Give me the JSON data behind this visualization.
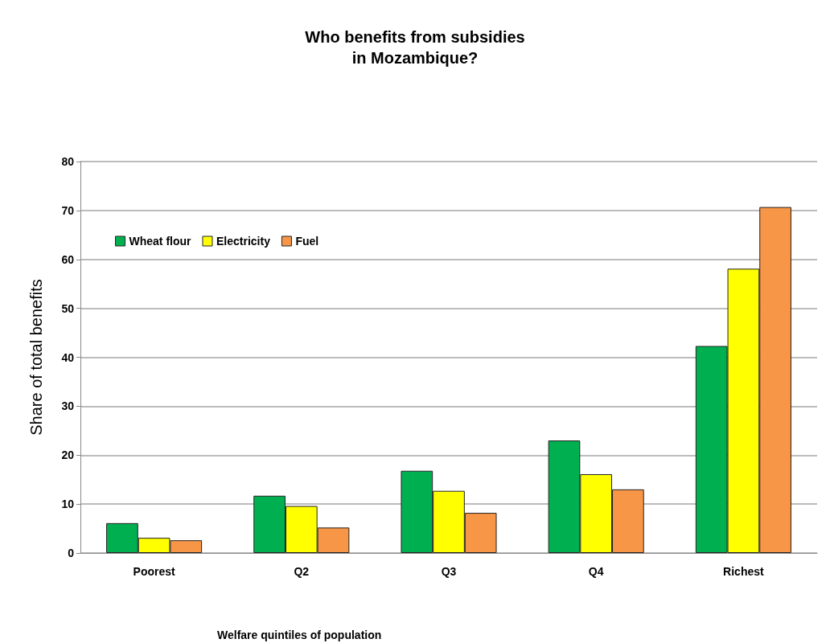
{
  "chart_data": {
    "type": "bar",
    "title": "Who benefits from subsidies\nin Mozambique?",
    "xlabel": "Welfare quintiles of population",
    "ylabel": "Share of total benefits",
    "categories": [
      "Poorest",
      "Q2",
      "Q3",
      "Q4",
      "Richest"
    ],
    "series": [
      {
        "name": "Wheat flour",
        "color": "#00b050",
        "values": [
          6.1,
          11.7,
          16.8,
          23.0,
          42.3
        ]
      },
      {
        "name": "Electricity",
        "color": "#ffff00",
        "values": [
          3.1,
          9.6,
          12.7,
          16.1,
          58.1
        ]
      },
      {
        "name": "Fuel",
        "color": "#f79646",
        "values": [
          2.6,
          5.2,
          8.2,
          13.0,
          70.7
        ]
      }
    ],
    "ylim": [
      0,
      80
    ],
    "yticks": [
      0,
      10,
      20,
      30,
      40,
      50,
      60,
      70,
      80
    ],
    "grid": "y",
    "legend": "top left"
  }
}
